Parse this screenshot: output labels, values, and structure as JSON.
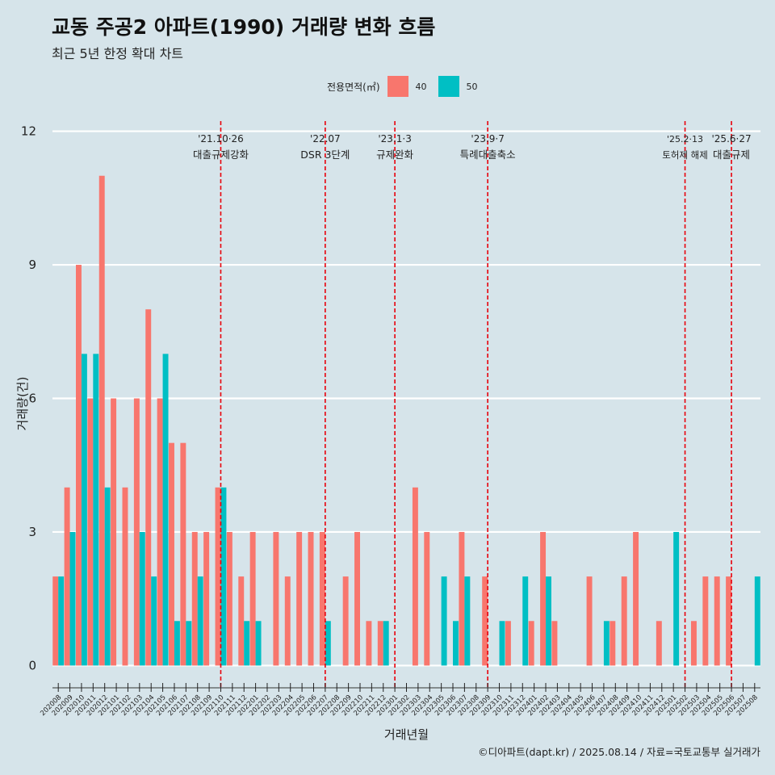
{
  "title": "교동 주공2 아파트(1990) 거래량 변화 흐름",
  "subtitle": "최근 5년 한정 확대 차트",
  "caption": "©디아파트(dapt.kr) / 2025.08.14 / 자료=국토교통부 실거래가",
  "legend": {
    "title": "전용면적(㎡)",
    "items": [
      {
        "label": "40",
        "color": "#F8766D"
      },
      {
        "label": "50",
        "color": "#00BFC4"
      }
    ]
  },
  "colors": {
    "background": "#d6e4ea",
    "grid": "#ffffff",
    "event_line": "#e8000b"
  },
  "chart_data": {
    "type": "bar",
    "title": "교동 주공2 아파트(1990) 거래량 변화 흐름",
    "subtitle": "최근 5년 한정 확대 차트",
    "xlabel": "거래년월",
    "ylabel": "거래량(건)",
    "ylim": [
      -0.5,
      12.5
    ],
    "yticks": [
      0,
      3,
      6,
      9,
      12
    ],
    "categories": [
      "202008",
      "202009",
      "202010",
      "202011",
      "202012",
      "202101",
      "202102",
      "202103",
      "202104",
      "202105",
      "202106",
      "202107",
      "202108",
      "202109",
      "202110",
      "202111",
      "202112",
      "202201",
      "202202",
      "202203",
      "202204",
      "202205",
      "202206",
      "202207",
      "202208",
      "202209",
      "202210",
      "202211",
      "202212",
      "202301",
      "202302",
      "202303",
      "202304",
      "202305",
      "202306",
      "202307",
      "202308",
      "202309",
      "202310",
      "202311",
      "202312",
      "202401",
      "202402",
      "202403",
      "202404",
      "202405",
      "202406",
      "202407",
      "202408",
      "202409",
      "202410",
      "202411",
      "202412",
      "202501",
      "202502",
      "202503",
      "202504",
      "202505",
      "202506",
      "202507",
      "202508"
    ],
    "series": [
      {
        "name": "40",
        "color": "#F8766D",
        "values": [
          2,
          4,
          9,
          6,
          11,
          6,
          4,
          6,
          8,
          6,
          5,
          5,
          3,
          3,
          4,
          3,
          2,
          3,
          0,
          3,
          2,
          3,
          3,
          3,
          0,
          2,
          3,
          1,
          1,
          0,
          0,
          4,
          3,
          0,
          0,
          3,
          0,
          2,
          0,
          1,
          0,
          1,
          3,
          1,
          0,
          0,
          2,
          0,
          1,
          2,
          3,
          0,
          1,
          0,
          0,
          1,
          2,
          2,
          2,
          0,
          0
        ]
      },
      {
        "name": "50",
        "color": "#00BFC4",
        "values": [
          2,
          3,
          7,
          7,
          4,
          0,
          0,
          3,
          2,
          7,
          1,
          1,
          2,
          0,
          4,
          0,
          1,
          1,
          0,
          0,
          0,
          0,
          0,
          1,
          0,
          0,
          0,
          0,
          1,
          0,
          0,
          0,
          0,
          2,
          1,
          2,
          0,
          0,
          1,
          0,
          2,
          0,
          2,
          0,
          0,
          0,
          0,
          1,
          0,
          0,
          0,
          0,
          0,
          3,
          0,
          0,
          0,
          0,
          0,
          0,
          2
        ]
      }
    ],
    "events": [
      {
        "month": "202110",
        "date": "'21.10·26",
        "label": "대출규제강화"
      },
      {
        "month": "202207",
        "date": "'22.07",
        "label": "DSR 3단계"
      },
      {
        "month": "202301",
        "date": "'23.1·3",
        "label": "규제완화"
      },
      {
        "month": "202309",
        "date": "'23.9·7",
        "label": "특례대출축소"
      },
      {
        "month": "202502",
        "date": "'25.2·13",
        "label": "토허제 해제"
      },
      {
        "month": "202506",
        "date": "'25.6·27",
        "label": "대출규제"
      }
    ]
  }
}
